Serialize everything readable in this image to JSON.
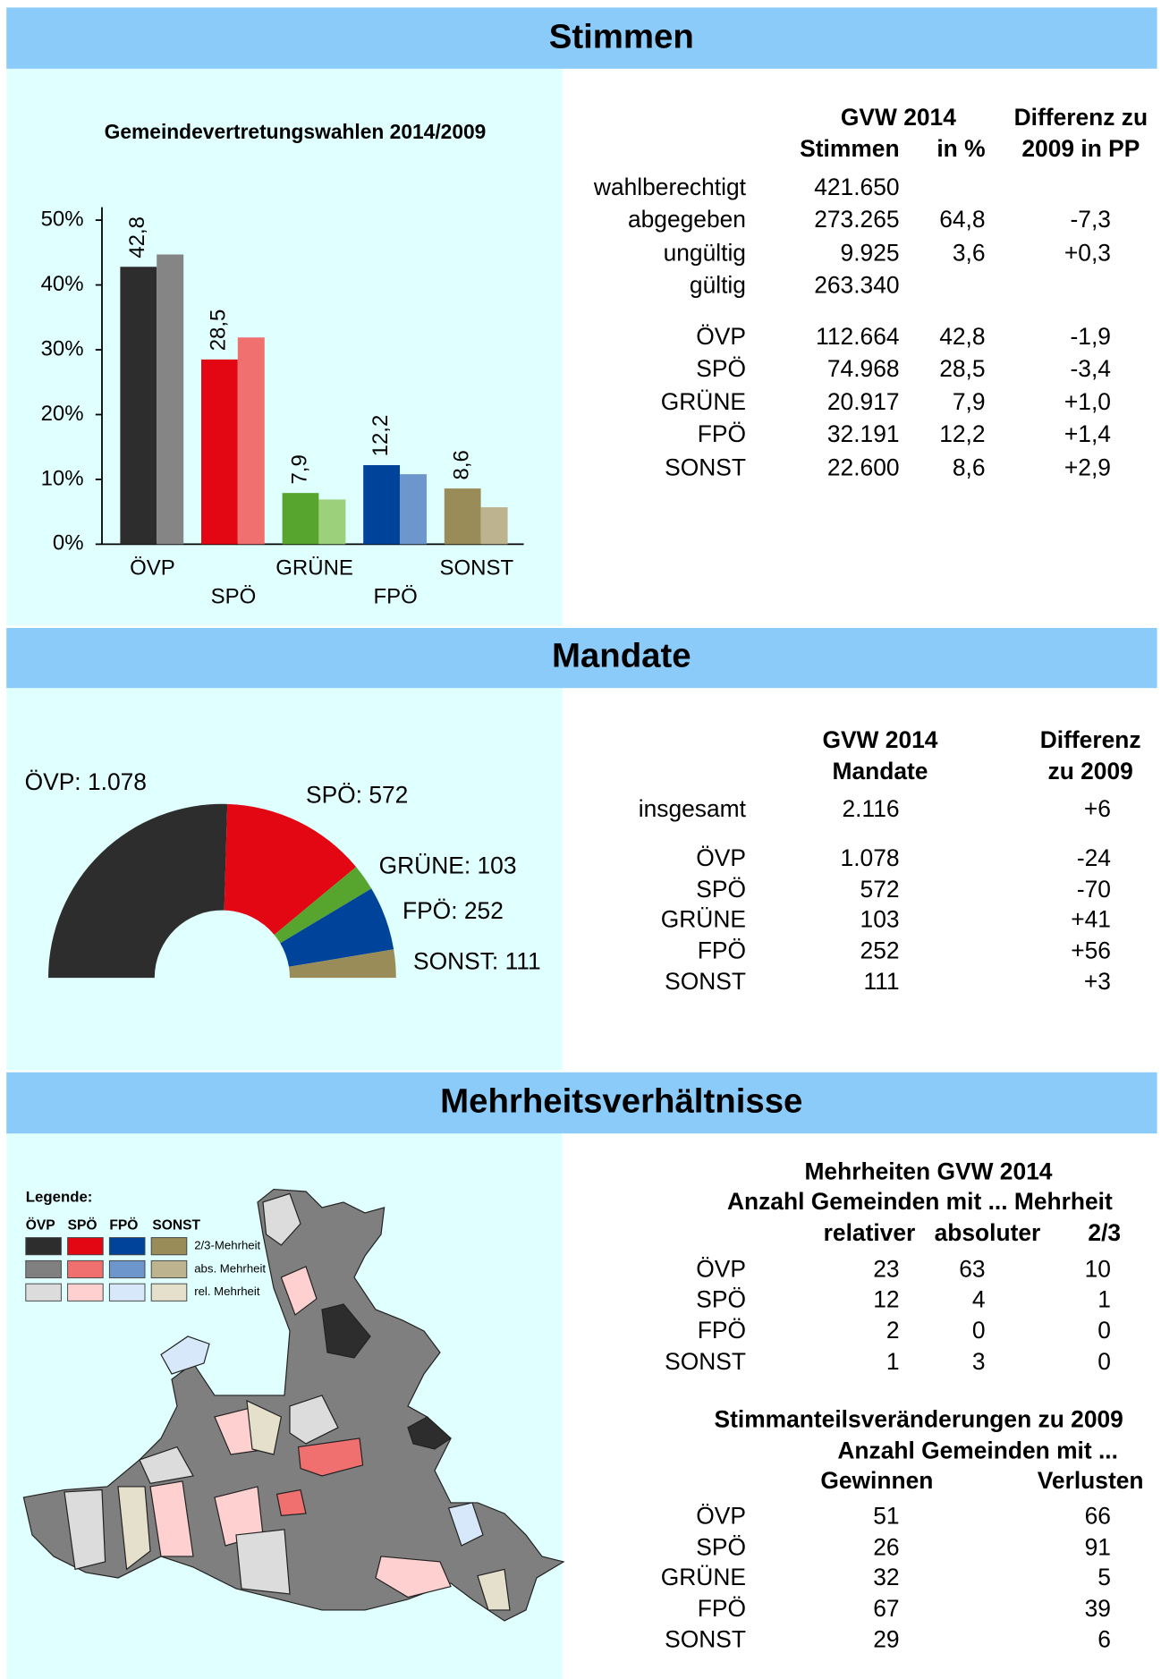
{
  "sections": [
    "Stimmen",
    "Mandate",
    "Mehrheitsverhältnisse"
  ],
  "chart_data": [
    {
      "type": "bar",
      "title": "Gemeindevertretungswahlen 2014/2009",
      "categories": [
        "ÖVP",
        "SPÖ",
        "GRÜNE",
        "FPÖ",
        "SONST"
      ],
      "series": [
        {
          "values": [
            42.8,
            28.5,
            7.9,
            12.2,
            8.6
          ],
          "value_labels": [
            "42,8",
            "28,5",
            "7,9",
            "12,2",
            "8,6"
          ],
          "colors": [
            "#2d2d2d",
            "#e30613",
            "#57a52f",
            "#00439a",
            "#998c59"
          ]
        },
        {
          "values": [
            44.7,
            31.9,
            6.9,
            10.8,
            5.7
          ],
          "colors": [
            "#858585",
            "#f07070",
            "#9dd07a",
            "#6d97cc",
            "#bdb38f"
          ]
        }
      ],
      "ylim": [
        0,
        52
      ],
      "yticks": [
        {
          "value": 0,
          "label": "0%"
        },
        {
          "value": 10,
          "label": "10%"
        },
        {
          "value": 20,
          "label": "20%"
        },
        {
          "value": 30,
          "label": "30%"
        },
        {
          "value": 40,
          "label": "40%"
        },
        {
          "value": 50,
          "label": "50%"
        }
      ]
    },
    {
      "type": "pie",
      "half": true,
      "values": [
        1078,
        572,
        103,
        252,
        111
      ],
      "value_labels": [
        "ÖVP: 1.078",
        "SPÖ: 572",
        "GRÜNE: 103",
        "FPÖ: 252",
        "SONST: 111"
      ],
      "colors": [
        "#2d2d2d",
        "#e30613",
        "#57a52f",
        "#00439a",
        "#998c59"
      ]
    }
  ],
  "tables": [
    {
      "header": [
        "GVW 2014",
        "Differenz zu",
        "Stimmen",
        "in %",
        "2009 in PP"
      ],
      "rows": [
        [
          "wahlberechtigt",
          "421.650",
          null,
          null
        ],
        [
          "abgegeben",
          "273.265",
          "64,8",
          "-7,3"
        ],
        [
          "ungültig",
          "9.925",
          "3,6",
          "+0,3"
        ],
        [
          "gültig",
          "263.340",
          null,
          null
        ],
        [
          "ÖVP",
          "112.664",
          "42,8",
          "-1,9"
        ],
        [
          "SPÖ",
          "74.968",
          "28,5",
          "-3,4"
        ],
        [
          "GRÜNE",
          "20.917",
          "7,9",
          "+1,0"
        ],
        [
          "FPÖ",
          "32.191",
          "12,2",
          "+1,4"
        ],
        [
          "SONST",
          "22.600",
          "8,6",
          "+2,9"
        ]
      ]
    },
    {
      "header": [
        "GVW 2014",
        "Differenz",
        "Mandate",
        "zu 2009"
      ],
      "rows": [
        [
          "insgesamt",
          "2.116",
          "+6"
        ],
        [
          "ÖVP",
          "1.078",
          "-24"
        ],
        [
          "SPÖ",
          "572",
          "-70"
        ],
        [
          "GRÜNE",
          "103",
          "+41"
        ],
        [
          "FPÖ",
          "252",
          "+56"
        ],
        [
          "SONST",
          "111",
          "+3"
        ]
      ]
    },
    {
      "header": [
        "Mehrheiten GVW 2014",
        "Anzahl Gemeinden mit ... Mehrheit",
        "relativer",
        "absoluter",
        "2/3"
      ],
      "rows": [
        [
          "ÖVP",
          "23",
          "63",
          "10"
        ],
        [
          "SPÖ",
          "12",
          "4",
          "1"
        ],
        [
          "FPÖ",
          "2",
          "0",
          "0"
        ],
        [
          "SONST",
          "1",
          "3",
          "0"
        ]
      ]
    },
    {
      "header": [
        "Stimmanteilsveränderungen zu 2009",
        "Anzahl Gemeinden mit ...",
        "Gewinnen",
        "Verlusten"
      ],
      "rows": [
        [
          "ÖVP",
          "51",
          "66"
        ],
        [
          "SPÖ",
          "26",
          "91"
        ],
        [
          "GRÜNE",
          "32",
          "5"
        ],
        [
          "FPÖ",
          "67",
          "39"
        ],
        [
          "SONST",
          "29",
          "6"
        ]
      ]
    }
  ],
  "map_legend": {
    "title": "Legende:",
    "parties": [
      "ÖVP",
      "SPÖ",
      "FPÖ",
      "SONST"
    ],
    "levels": [
      "2/3-Mehrheit",
      "abs. Mehrheit",
      "rel. Mehrheit"
    ],
    "colors": [
      [
        "#2d2d2d",
        "#e30613",
        "#00439a",
        "#998c59"
      ],
      [
        "#808080",
        "#f07070",
        "#6d97cc",
        "#bdb38f"
      ],
      [
        "#dcdcdc",
        "#ffd0d0",
        "#d8e8fb",
        "#e4e0cc"
      ]
    ]
  }
}
